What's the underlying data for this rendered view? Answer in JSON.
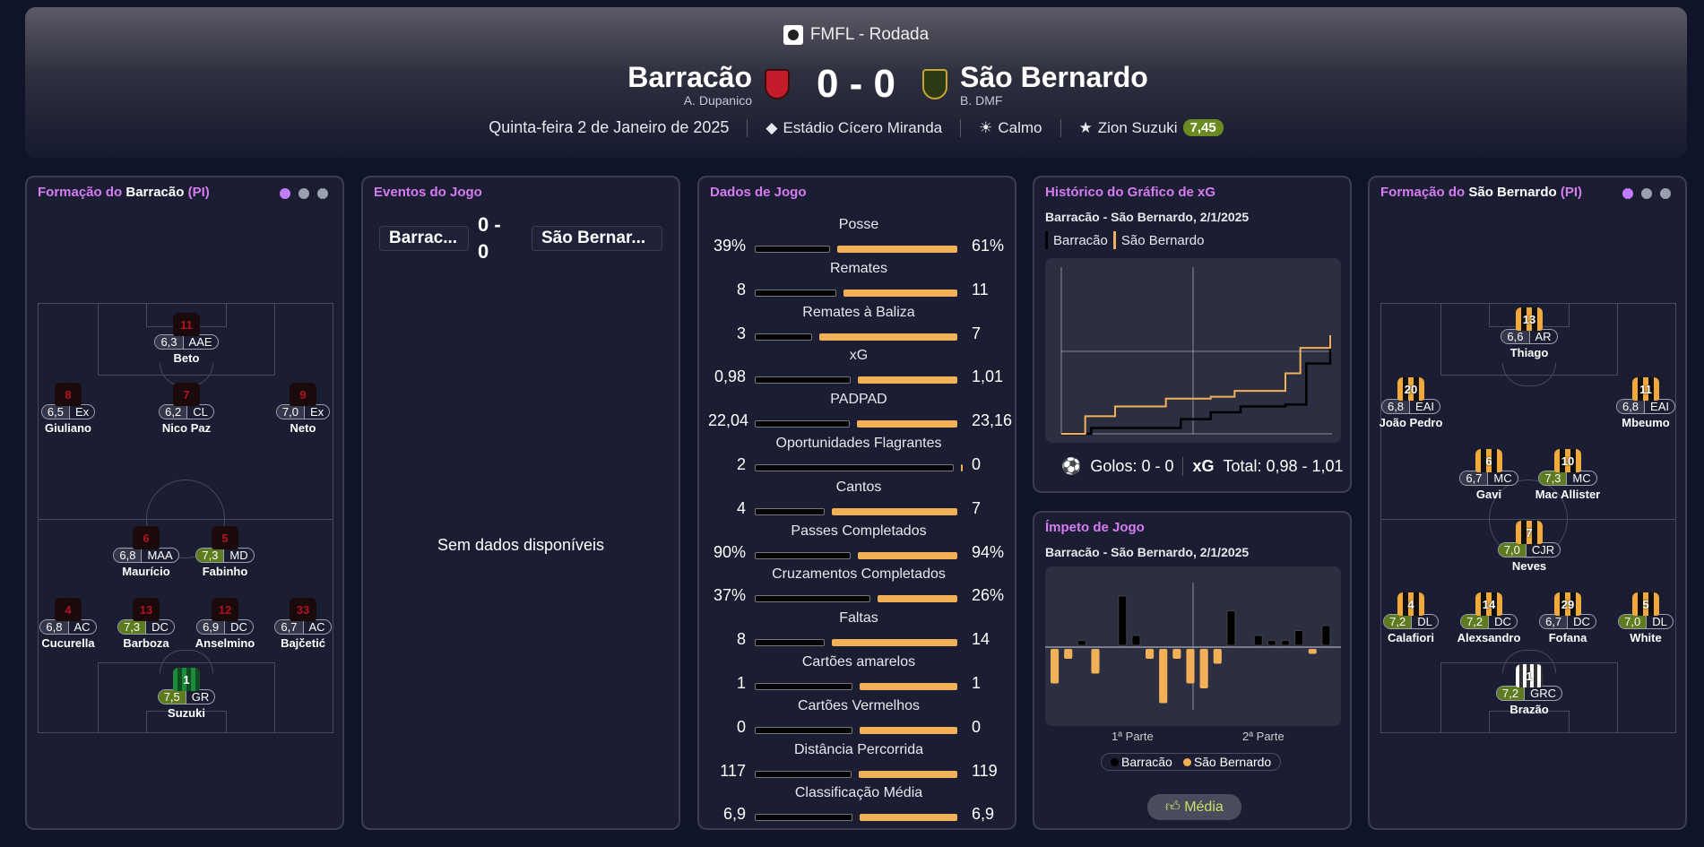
{
  "header": {
    "competition": "FMFL - Rodada",
    "home": {
      "name": "Barracão",
      "coach": "A. Dupanico"
    },
    "away": {
      "name": "São Bernardo",
      "coach": "B. DMF"
    },
    "score": "0 - 0",
    "date": "Quinta-feira 2 de Janeiro de 2025",
    "stadium": "Estádio Cícero Miranda",
    "weather": "Calmo",
    "motm_name": "Zion Suzuki",
    "motm_rating": "7,45",
    "icons": {
      "stadium": "stadium-icon",
      "weather": "sun-icon",
      "motm": "star-icon"
    }
  },
  "home_lineup": {
    "title_prefix": "Formação do",
    "team": "Barracão",
    "suffix": "(PI)",
    "players": [
      {
        "num": "11",
        "rating": "6,3",
        "pos": "AAE",
        "name": "Beto",
        "good": false
      },
      {
        "num": "8",
        "rating": "6,5",
        "pos": "Ex",
        "name": "Giuliano",
        "good": false
      },
      {
        "num": "7",
        "rating": "6,2",
        "pos": "CL",
        "name": "Nico Paz",
        "good": false
      },
      {
        "num": "9",
        "rating": "7,0",
        "pos": "Ex",
        "name": "Neto",
        "good": false
      },
      {
        "num": "6",
        "rating": "6,8",
        "pos": "MAA",
        "name": "Maurício",
        "good": false
      },
      {
        "num": "5",
        "rating": "7,3",
        "pos": "MD",
        "name": "Fabinho",
        "good": true
      },
      {
        "num": "4",
        "rating": "6,8",
        "pos": "AC",
        "name": "Cucurella",
        "good": false
      },
      {
        "num": "13",
        "rating": "7,3",
        "pos": "DC",
        "name": "Barboza",
        "good": true
      },
      {
        "num": "12",
        "rating": "6,9",
        "pos": "DC",
        "name": "Anselmino",
        "good": false
      },
      {
        "num": "33",
        "rating": "6,7",
        "pos": "AC",
        "name": "Bajčetić",
        "good": false
      },
      {
        "num": "1",
        "rating": "7,5",
        "pos": "GR",
        "name": "Suzuki",
        "good": true
      }
    ]
  },
  "events": {
    "title": "Eventos do Jogo",
    "home_short": "Barrac...",
    "away_short": "São Bernar...",
    "score_top": "0 -",
    "score_bot": "0",
    "empty": "Sem dados disponíveis"
  },
  "stats": {
    "title": "Dados de Jogo",
    "rows": [
      {
        "label": "Posse",
        "home": "39%",
        "away": "61%",
        "hv": 39,
        "av": 61
      },
      {
        "label": "Remates",
        "home": "8",
        "away": "11",
        "hv": 8,
        "av": 11
      },
      {
        "label": "Remates à Baliza",
        "home": "3",
        "away": "7",
        "hv": 3,
        "av": 7
      },
      {
        "label": "xG",
        "home": "0,98",
        "away": "1,01",
        "hv": 0.98,
        "av": 1.01
      },
      {
        "label": "PADPAD",
        "home": "22,04",
        "away": "23,16",
        "hv": 22.04,
        "av": 23.16
      },
      {
        "label": "Oportunidades Flagrantes",
        "home": "2",
        "away": "0",
        "hv": 2,
        "av": 0
      },
      {
        "label": "Cantos",
        "home": "4",
        "away": "7",
        "hv": 4,
        "av": 7
      },
      {
        "label": "Passes Completados",
        "home": "90%",
        "away": "94%",
        "hv": 90,
        "av": 94
      },
      {
        "label": "Cruzamentos Completados",
        "home": "37%",
        "away": "26%",
        "hv": 37,
        "av": 26
      },
      {
        "label": "Faltas",
        "home": "8",
        "away": "14",
        "hv": 8,
        "av": 14
      },
      {
        "label": "Cartões amarelos",
        "home": "1",
        "away": "1",
        "hv": 1,
        "av": 1
      },
      {
        "label": "Cartões Vermelhos",
        "home": "0",
        "away": "0",
        "hv": 0,
        "av": 0
      },
      {
        "label": "Distância Percorrida",
        "home": "117",
        "away": "119",
        "hv": 117,
        "av": 119
      },
      {
        "label": "Classificação Média",
        "home": "6,9",
        "away": "6,9",
        "hv": 6.9,
        "av": 6.9
      }
    ]
  },
  "xg": {
    "title": "Histórico do Gráfico de xG",
    "subtitle": "Barracão - São Bernardo, 2/1/2025",
    "home_label": "Barracão",
    "away_label": "São Bernardo",
    "goals": "Golos: 0 - 0",
    "xg_label": "xG",
    "xg_total": "Total: 0,98 - 1,01"
  },
  "momentum": {
    "title": "Ímpeto de Jogo",
    "subtitle": "Barracão - São Bernardo, 2/1/2025",
    "first_half": "1ª Parte",
    "second_half": "2ª Parte",
    "legend_home": "Barracão",
    "legend_away": "São Bernardo",
    "button": "Média"
  },
  "away_lineup": {
    "title_prefix": "Formação do",
    "team": "São Bernardo",
    "suffix": "(PI)",
    "players": [
      {
        "num": "13",
        "rating": "6,6",
        "pos": "AR",
        "name": "Thiago",
        "good": false
      },
      {
        "num": "20",
        "rating": "6,8",
        "pos": "EAI",
        "name": "João Pedro",
        "good": false
      },
      {
        "num": "11",
        "rating": "6,8",
        "pos": "EAI",
        "name": "Mbeumo",
        "good": false
      },
      {
        "num": "6",
        "rating": "6,7",
        "pos": "MC",
        "name": "Gavi",
        "good": false
      },
      {
        "num": "10",
        "rating": "7,3",
        "pos": "MC",
        "name": "Mac Allister",
        "good": true
      },
      {
        "num": "7",
        "rating": "7,0",
        "pos": "CJR",
        "name": "Neves",
        "good": true
      },
      {
        "num": "4",
        "rating": "7,2",
        "pos": "DL",
        "name": "Calafiori",
        "good": true
      },
      {
        "num": "14",
        "rating": "7,2",
        "pos": "DC",
        "name": "Alexsandro",
        "good": true
      },
      {
        "num": "29",
        "rating": "6,7",
        "pos": "DC",
        "name": "Fofana",
        "good": false
      },
      {
        "num": "5",
        "rating": "7,0",
        "pos": "DL",
        "name": "White",
        "good": true
      },
      {
        "num": "1",
        "rating": "7,2",
        "pos": "GRC",
        "name": "Brazão",
        "good": true
      }
    ]
  },
  "chart_data": [
    {
      "type": "line",
      "series": [
        {
          "name": "Barracão",
          "x": [
            0,
            10,
            25,
            40,
            50,
            60,
            75,
            82,
            90
          ],
          "y": [
            0.0,
            0.06,
            0.06,
            0.15,
            0.22,
            0.28,
            0.3,
            0.72,
            0.98
          ]
        },
        {
          "name": "São Bernardo",
          "x": [
            0,
            8,
            18,
            35,
            50,
            58,
            75,
            80,
            90
          ],
          "y": [
            0.0,
            0.18,
            0.28,
            0.36,
            0.38,
            0.44,
            0.62,
            0.88,
            1.01
          ]
        }
      ]
    },
    {
      "type": "bar",
      "series": [
        {
          "name": "Barracão",
          "values": [
            0,
            0,
            1,
            0,
            0,
            10,
            2,
            0,
            0,
            0,
            0,
            0,
            0,
            7,
            0,
            2,
            1,
            1,
            3,
            0,
            4
          ]
        },
        {
          "name": "São Bernardo",
          "values": [
            7,
            2,
            0,
            5,
            0,
            0,
            0,
            2,
            11,
            2,
            7,
            8,
            3,
            0,
            0,
            0,
            0,
            0,
            0,
            1,
            0
          ]
        }
      ]
    }
  ]
}
